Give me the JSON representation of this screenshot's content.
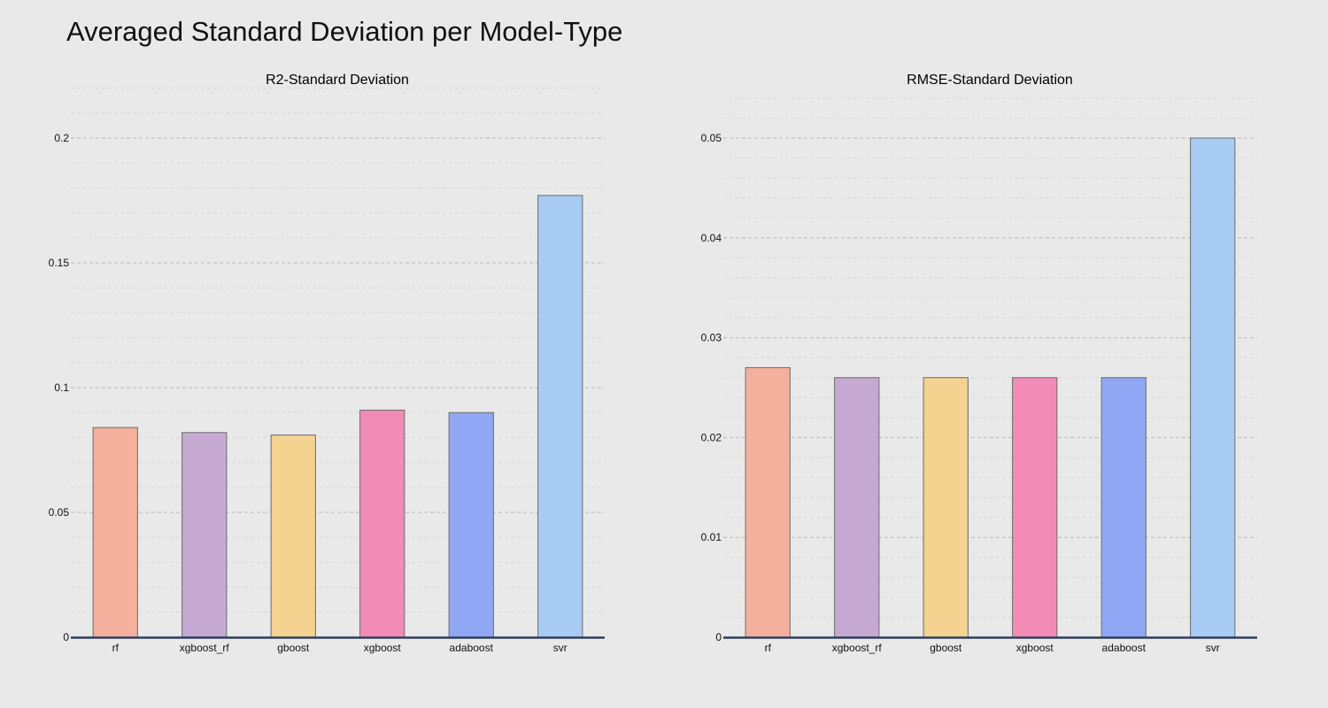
{
  "title": "Averaged Standard Deviation per Model-Type",
  "chart_data": [
    {
      "type": "bar",
      "title": "R2-Standard Deviation",
      "categories": [
        "rf",
        "xgboost_rf",
        "gboost",
        "xgboost",
        "adaboost",
        "svr"
      ],
      "values": [
        0.084,
        0.082,
        0.081,
        0.091,
        0.09,
        0.177
      ],
      "colors": [
        "#f4b09c",
        "#c6a9d2",
        "#f4d290",
        "#f28cb6",
        "#8fa7f4",
        "#a8cbf4"
      ],
      "ylim": [
        0,
        0.2
      ],
      "yticks": [
        0,
        0.05,
        0.1,
        0.15,
        0.2
      ],
      "ytick_labels": [
        "0",
        "0.05",
        "0.1",
        "0.15",
        "0.2"
      ],
      "grid": true
    },
    {
      "type": "bar",
      "title": "RMSE-Standard Deviation",
      "categories": [
        "rf",
        "xgboost_rf",
        "gboost",
        "xgboost",
        "adaboost",
        "svr"
      ],
      "values": [
        0.027,
        0.026,
        0.026,
        0.026,
        0.026,
        0.05
      ],
      "colors": [
        "#f4b09c",
        "#c6a9d2",
        "#f4d290",
        "#f28cb6",
        "#8fa7f4",
        "#a8cbf4"
      ],
      "ylim": [
        0,
        0.05
      ],
      "yticks": [
        0,
        0.01,
        0.02,
        0.03,
        0.04,
        0.05
      ],
      "ytick_labels": [
        "0",
        "0.01",
        "0.02",
        "0.03",
        "0.04",
        "0.05"
      ],
      "grid": true
    }
  ]
}
